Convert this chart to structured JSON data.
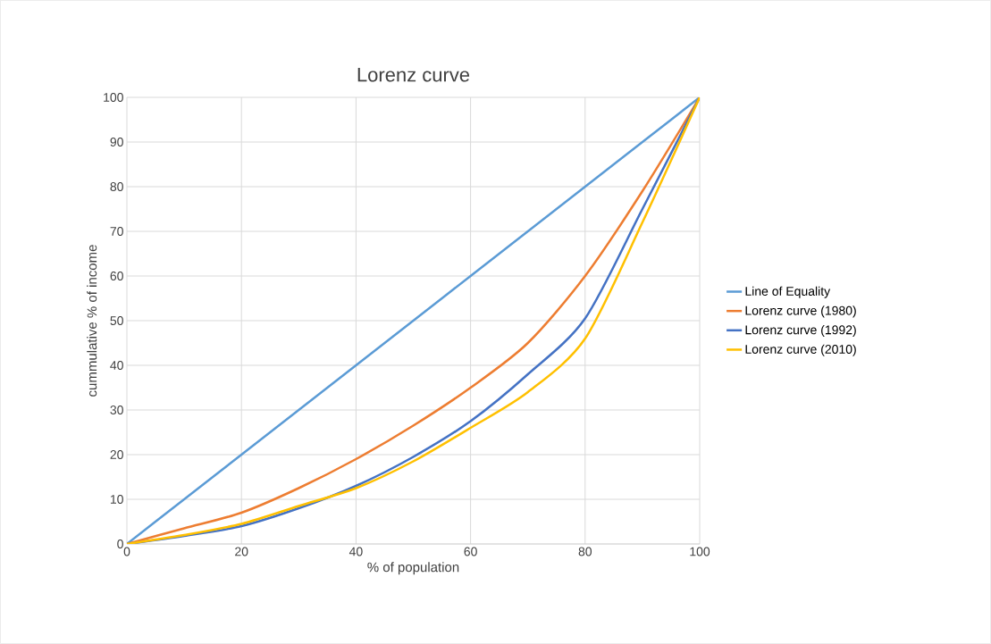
{
  "chart_data": {
    "type": "line",
    "title": "Lorenz curve",
    "xlabel": "% of population",
    "ylabel": "cummulative % of income",
    "x": [
      0,
      10,
      20,
      30,
      40,
      50,
      60,
      70,
      80,
      90,
      100
    ],
    "xlim": [
      0,
      100
    ],
    "xticks": [
      0,
      20,
      40,
      60,
      80,
      100
    ],
    "ylim": [
      0,
      100
    ],
    "yticks": [
      0,
      10,
      20,
      30,
      40,
      50,
      60,
      70,
      80,
      90,
      100
    ],
    "grid": true,
    "legend": "right",
    "marker": "none",
    "line_style": "solid",
    "series": [
      {
        "name": "Line of Equality",
        "color": "#5b9bd5",
        "values": [
          0,
          10,
          20,
          30,
          40,
          50,
          60,
          70,
          80,
          90,
          100
        ]
      },
      {
        "name": "Lorenz curve (1980)",
        "color": "#ed7d31",
        "values": [
          0,
          3.5,
          7,
          12.5,
          19,
          26.5,
          35,
          45,
          60,
          79,
          100
        ]
      },
      {
        "name": "Lorenz curve (1992)",
        "color": "#4472c4",
        "values": [
          0,
          1.8,
          4,
          8,
          13,
          19.5,
          27.5,
          38,
          50.5,
          75,
          100
        ]
      },
      {
        "name": "Lorenz curve (2010)",
        "color": "#ffc000",
        "values": [
          0,
          2,
          4.5,
          8.5,
          12.5,
          18.5,
          26,
          34,
          46,
          72,
          100
        ]
      }
    ]
  }
}
